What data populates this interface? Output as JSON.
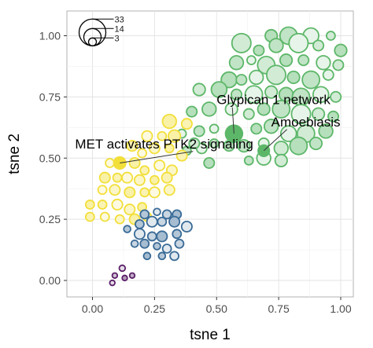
{
  "chart_data": {
    "type": "scatter",
    "title": "",
    "xlabel": "tsne 1",
    "ylabel": "tsne 2",
    "xlim": [
      -0.1,
      1.07
    ],
    "ylim": [
      -0.08,
      1.1
    ],
    "x_ticks": [
      "0.00",
      "0.25",
      "0.50",
      "0.75",
      "1.00"
    ],
    "x_tick_values": [
      0,
      0.25,
      0.5,
      0.75,
      1.0
    ],
    "y_ticks": [
      "0.00",
      "0.25",
      "0.50",
      "0.75",
      "1.00"
    ],
    "y_tick_values": [
      0,
      0.25,
      0.5,
      0.75,
      1.0
    ],
    "grid": true,
    "point_size_legend": {
      "values": [
        33,
        14,
        3
      ],
      "labels": [
        "33",
        "14",
        "3"
      ],
      "anchor": [
        0.0,
        0.975
      ]
    },
    "clusters": [
      {
        "color": "#5db769",
        "points": [
          [
            0.6,
            0.97,
            22
          ],
          [
            0.72,
            1.0,
            14
          ],
          [
            0.79,
            1.0,
            20
          ],
          [
            0.88,
            1.0,
            18
          ],
          [
            0.96,
            1.0,
            10
          ],
          [
            0.67,
            0.94,
            12
          ],
          [
            0.74,
            0.96,
            16
          ],
          [
            0.83,
            0.97,
            22
          ],
          [
            0.91,
            0.96,
            12
          ],
          [
            1.0,
            0.94,
            14
          ],
          [
            0.58,
            0.89,
            16
          ],
          [
            0.64,
            0.9,
            10
          ],
          [
            0.7,
            0.88,
            20
          ],
          [
            0.78,
            0.9,
            14
          ],
          [
            0.85,
            0.9,
            12
          ],
          [
            0.93,
            0.89,
            16
          ],
          [
            0.99,
            0.88,
            12
          ],
          [
            0.55,
            0.82,
            18
          ],
          [
            0.6,
            0.82,
            12
          ],
          [
            0.66,
            0.83,
            16
          ],
          [
            0.74,
            0.84,
            22
          ],
          [
            0.81,
            0.83,
            14
          ],
          [
            0.88,
            0.82,
            20
          ],
          [
            0.95,
            0.84,
            12
          ],
          [
            0.43,
            0.78,
            14
          ],
          [
            0.51,
            0.78,
            18
          ],
          [
            0.58,
            0.76,
            12
          ],
          [
            0.65,
            0.76,
            20
          ],
          [
            0.72,
            0.77,
            14
          ],
          [
            0.78,
            0.76,
            16
          ],
          [
            0.84,
            0.75,
            20
          ],
          [
            0.92,
            0.76,
            18
          ],
          [
            0.98,
            0.75,
            12
          ],
          [
            0.4,
            0.69,
            12
          ],
          [
            0.47,
            0.7,
            16
          ],
          [
            0.56,
            0.7,
            14
          ],
          [
            0.63,
            0.68,
            12
          ],
          [
            0.69,
            0.7,
            14
          ],
          [
            0.76,
            0.7,
            20
          ],
          [
            0.84,
            0.68,
            22
          ],
          [
            0.91,
            0.68,
            14
          ],
          [
            0.97,
            0.67,
            12
          ],
          [
            0.43,
            0.61,
            12
          ],
          [
            0.49,
            0.62,
            10
          ],
          [
            0.58,
            0.6,
            14
          ],
          [
            0.66,
            0.62,
            12
          ],
          [
            0.72,
            0.63,
            16
          ],
          [
            0.79,
            0.6,
            18
          ],
          [
            0.86,
            0.6,
            20
          ],
          [
            0.94,
            0.61,
            16
          ],
          [
            0.38,
            0.53,
            10
          ],
          [
            0.44,
            0.54,
            12
          ],
          [
            0.49,
            0.56,
            10
          ],
          [
            0.55,
            0.55,
            12
          ],
          [
            0.61,
            0.55,
            14
          ],
          [
            0.69,
            0.56,
            12
          ],
          [
            0.76,
            0.54,
            16
          ],
          [
            0.83,
            0.55,
            20
          ],
          [
            0.9,
            0.56,
            14
          ],
          [
            0.36,
            0.6,
            10
          ],
          [
            0.41,
            0.56,
            12
          ],
          [
            0.47,
            0.48,
            12
          ],
          [
            0.63,
            0.49,
            10
          ],
          [
            0.69,
            0.5,
            16
          ],
          [
            0.76,
            0.49,
            14
          ]
        ]
      },
      {
        "color": "#f2df3a",
        "points": [
          [
            0.31,
            0.65,
            16
          ],
          [
            0.38,
            0.64,
            12
          ],
          [
            0.22,
            0.59,
            12
          ],
          [
            0.28,
            0.59,
            10
          ],
          [
            0.33,
            0.59,
            14
          ],
          [
            0.16,
            0.55,
            12
          ],
          [
            0.2,
            0.52,
            10
          ],
          [
            0.25,
            0.54,
            12
          ],
          [
            0.31,
            0.54,
            10
          ],
          [
            0.36,
            0.51,
            12
          ],
          [
            0.07,
            0.48,
            10
          ],
          [
            0.11,
            0.48,
            14
          ],
          [
            0.17,
            0.48,
            12
          ],
          [
            0.21,
            0.45,
            10
          ],
          [
            0.27,
            0.47,
            12
          ],
          [
            0.32,
            0.45,
            12
          ],
          [
            0.05,
            0.42,
            12
          ],
          [
            0.1,
            0.42,
            10
          ],
          [
            0.14,
            0.42,
            12
          ],
          [
            0.19,
            0.41,
            12
          ],
          [
            0.25,
            0.41,
            10
          ],
          [
            0.3,
            0.42,
            12
          ],
          [
            0.04,
            0.37,
            10
          ],
          [
            0.09,
            0.37,
            12
          ],
          [
            0.15,
            0.36,
            12
          ],
          [
            0.21,
            0.36,
            10
          ],
          [
            0.25,
            0.36,
            12
          ],
          [
            0.31,
            0.37,
            12
          ],
          [
            -0.01,
            0.31,
            10
          ],
          [
            0.04,
            0.31,
            10
          ],
          [
            0.1,
            0.31,
            12
          ],
          [
            0.15,
            0.29,
            12
          ],
          [
            0.2,
            0.3,
            10
          ],
          [
            -0.01,
            0.26,
            10
          ],
          [
            0.05,
            0.26,
            10
          ],
          [
            0.11,
            0.25,
            10
          ],
          [
            0.17,
            0.25,
            12
          ],
          [
            0.22,
            0.26,
            10
          ]
        ]
      },
      {
        "color": "#3a6b97",
        "points": [
          [
            0.21,
            0.27,
            10
          ],
          [
            0.26,
            0.28,
            8
          ],
          [
            0.3,
            0.27,
            10
          ],
          [
            0.34,
            0.27,
            10
          ],
          [
            0.19,
            0.23,
            10
          ],
          [
            0.24,
            0.24,
            12
          ],
          [
            0.28,
            0.24,
            10
          ],
          [
            0.33,
            0.24,
            12
          ],
          [
            0.14,
            0.21,
            8
          ],
          [
            0.19,
            0.19,
            12
          ],
          [
            0.24,
            0.18,
            10
          ],
          [
            0.28,
            0.18,
            12
          ],
          [
            0.34,
            0.19,
            10
          ],
          [
            0.38,
            0.22,
            12
          ],
          [
            0.17,
            0.15,
            8
          ],
          [
            0.21,
            0.15,
            10
          ],
          [
            0.26,
            0.14,
            8
          ],
          [
            0.3,
            0.13,
            10
          ],
          [
            0.35,
            0.15,
            10
          ],
          [
            0.22,
            0.1,
            8
          ],
          [
            0.28,
            0.1,
            8
          ],
          [
            0.33,
            0.1,
            10
          ]
        ]
      },
      {
        "color": "#5a1f68",
        "points": [
          [
            0.12,
            0.05,
            7
          ],
          [
            0.09,
            0.02,
            6
          ],
          [
            0.13,
            0.01,
            6
          ],
          [
            0.16,
            0.02,
            6
          ],
          [
            0.08,
            -0.01,
            6
          ]
        ]
      }
    ],
    "highlighted": [
      {
        "x": 0.57,
        "y": 0.6,
        "r": 18,
        "fill": "#5db769"
      },
      {
        "x": 0.69,
        "y": 0.53,
        "r": 12,
        "fill": "#5db769"
      },
      {
        "x": 0.11,
        "y": 0.48,
        "r": 12,
        "fill": "#f2df3a"
      }
    ],
    "annotations": [
      {
        "text": "Glypican 1 network",
        "tx": 0.5,
        "ty": 0.72,
        "px": 0.57,
        "py": 0.6
      },
      {
        "text": "Amoebiasis",
        "tx": 0.72,
        "ty": 0.63,
        "px": 0.69,
        "py": 0.53
      },
      {
        "text": "MET activates PTK2 signaling",
        "tx": -0.07,
        "ty": 0.54,
        "px": 0.11,
        "py": 0.48
      }
    ]
  }
}
